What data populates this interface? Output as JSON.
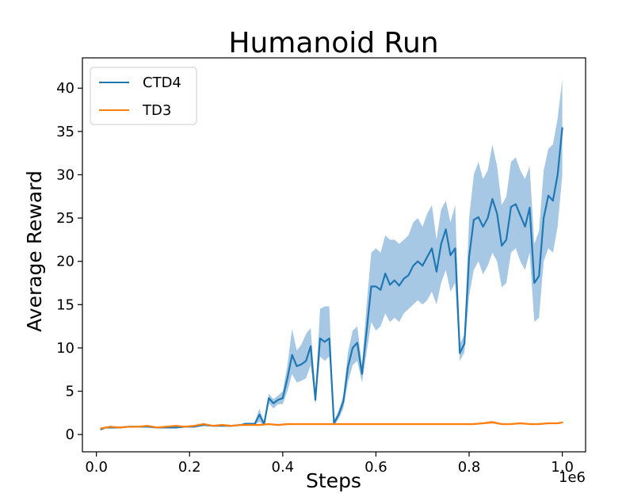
{
  "chart_data": {
    "type": "line",
    "title": "Humanoid Run",
    "xlabel": "Steps",
    "ylabel": "Average Reward",
    "x_offset_label": "1e6",
    "xlim": [
      -0.03,
      1.05
    ],
    "ylim": [
      -2,
      43.5
    ],
    "x_ticks": [
      0.0,
      0.2,
      0.4,
      0.6,
      0.8,
      1.0
    ],
    "x_tick_labels": [
      "0.0",
      "0.2",
      "0.4",
      "0.6",
      "0.8",
      "1.0"
    ],
    "y_ticks": [
      0,
      5,
      10,
      15,
      20,
      25,
      30,
      35,
      40
    ],
    "y_tick_labels": [
      "0",
      "5",
      "10",
      "15",
      "20",
      "25",
      "30",
      "35",
      "40"
    ],
    "grid": false,
    "legend_position": "top-left",
    "series": [
      {
        "name": "CTD4",
        "color": "#1f77b4",
        "band_color": "#a6c8e4",
        "points": [
          [
            0.01,
            0.6,
            0.6,
            0.6
          ],
          [
            0.02,
            0.8,
            0.7,
            0.9
          ],
          [
            0.03,
            0.8,
            0.7,
            0.9
          ],
          [
            0.05,
            0.8,
            0.7,
            0.9
          ],
          [
            0.07,
            0.9,
            0.8,
            1.0
          ],
          [
            0.09,
            0.9,
            0.8,
            1.0
          ],
          [
            0.11,
            0.9,
            0.8,
            1.0
          ],
          [
            0.13,
            0.8,
            0.7,
            0.9
          ],
          [
            0.15,
            0.8,
            0.7,
            0.9
          ],
          [
            0.17,
            0.8,
            0.7,
            0.9
          ],
          [
            0.19,
            0.9,
            0.8,
            1.0
          ],
          [
            0.21,
            0.9,
            0.8,
            1.0
          ],
          [
            0.23,
            1.1,
            1.0,
            1.2
          ],
          [
            0.25,
            1.0,
            0.9,
            1.1
          ],
          [
            0.27,
            1.0,
            0.9,
            1.1
          ],
          [
            0.29,
            1.0,
            0.9,
            1.1
          ],
          [
            0.31,
            1.1,
            1.0,
            1.2
          ],
          [
            0.32,
            1.2,
            1.1,
            1.4
          ],
          [
            0.34,
            1.2,
            1.1,
            1.4
          ],
          [
            0.35,
            2.3,
            1.5,
            3.0
          ],
          [
            0.36,
            1.2,
            1.0,
            1.4
          ],
          [
            0.37,
            4.2,
            3.6,
            4.7
          ],
          [
            0.38,
            3.6,
            3.0,
            4.1
          ],
          [
            0.39,
            4.0,
            3.5,
            4.5
          ],
          [
            0.4,
            4.2,
            3.5,
            5.0
          ],
          [
            0.41,
            6.5,
            5.0,
            8.0
          ],
          [
            0.42,
            9.2,
            7.0,
            12.2
          ],
          [
            0.43,
            7.9,
            6.0,
            9.7
          ],
          [
            0.44,
            8.1,
            6.2,
            10.4
          ],
          [
            0.45,
            8.5,
            6.5,
            11.6
          ],
          [
            0.46,
            10.2,
            8.0,
            12.3
          ],
          [
            0.47,
            4.0,
            3.5,
            4.5
          ],
          [
            0.48,
            11.1,
            9.0,
            14.5
          ],
          [
            0.49,
            10.7,
            8.5,
            14.8
          ],
          [
            0.5,
            11.1,
            9.0,
            14.8
          ],
          [
            0.51,
            1.3,
            1.0,
            1.6
          ],
          [
            0.52,
            2.3,
            1.8,
            2.8
          ],
          [
            0.53,
            3.8,
            3.0,
            4.5
          ],
          [
            0.54,
            7.8,
            6.0,
            9.5
          ],
          [
            0.55,
            10.0,
            8.0,
            12.0
          ],
          [
            0.56,
            10.6,
            8.5,
            12.5
          ],
          [
            0.57,
            7.0,
            6.0,
            8.0
          ],
          [
            0.58,
            12.0,
            9.5,
            15.0
          ],
          [
            0.59,
            17.1,
            13.0,
            21.0
          ],
          [
            0.6,
            17.1,
            12.0,
            21.5
          ],
          [
            0.61,
            16.7,
            12.5,
            21.0
          ],
          [
            0.62,
            18.6,
            14.0,
            23.0
          ],
          [
            0.63,
            17.3,
            13.0,
            22.5
          ],
          [
            0.64,
            17.8,
            13.5,
            22.5
          ],
          [
            0.65,
            17.2,
            13.0,
            22.0
          ],
          [
            0.66,
            18.0,
            14.0,
            22.5
          ],
          [
            0.67,
            18.4,
            14.5,
            23.0
          ],
          [
            0.68,
            19.5,
            15.0,
            24.5
          ],
          [
            0.69,
            20.0,
            15.5,
            25.0
          ],
          [
            0.7,
            19.5,
            15.0,
            24.0
          ],
          [
            0.71,
            20.5,
            15.5,
            25.5
          ],
          [
            0.72,
            21.5,
            16.5,
            26.5
          ],
          [
            0.73,
            18.8,
            15.0,
            22.5
          ],
          [
            0.74,
            22.0,
            17.5,
            26.0
          ],
          [
            0.75,
            23.7,
            19.0,
            27.0
          ],
          [
            0.76,
            20.7,
            16.5,
            24.5
          ],
          [
            0.77,
            21.5,
            17.5,
            26.5
          ],
          [
            0.78,
            9.4,
            8.5,
            10.5
          ],
          [
            0.79,
            10.5,
            9.5,
            11.5
          ],
          [
            0.8,
            20.5,
            16.0,
            25.0
          ],
          [
            0.81,
            24.8,
            19.0,
            30.0
          ],
          [
            0.82,
            25.1,
            20.0,
            31.5
          ],
          [
            0.83,
            24.0,
            18.5,
            29.5
          ],
          [
            0.84,
            25.0,
            19.5,
            30.5
          ],
          [
            0.85,
            27.2,
            21.0,
            33.5
          ],
          [
            0.86,
            25.5,
            20.0,
            31.0
          ],
          [
            0.87,
            21.8,
            17.0,
            26.5
          ],
          [
            0.88,
            22.5,
            17.5,
            27.5
          ],
          [
            0.89,
            26.3,
            21.0,
            31.5
          ],
          [
            0.9,
            26.6,
            21.5,
            32.0
          ],
          [
            0.91,
            25.3,
            20.0,
            30.5
          ],
          [
            0.92,
            24.0,
            19.0,
            29.5
          ],
          [
            0.93,
            26.2,
            21.0,
            31.0
          ],
          [
            0.94,
            17.5,
            13.0,
            22.0
          ],
          [
            0.95,
            18.3,
            13.5,
            23.5
          ],
          [
            0.96,
            25.0,
            20.0,
            30.5
          ],
          [
            0.97,
            27.6,
            21.5,
            33.0
          ],
          [
            0.98,
            27.0,
            21.0,
            33.5
          ],
          [
            0.99,
            30.0,
            24.0,
            36.5
          ],
          [
            1.0,
            35.4,
            30.0,
            41.0
          ]
        ]
      },
      {
        "name": "TD3",
        "color": "#ff7f0e",
        "band_color": "#ffbf86",
        "points": [
          [
            0.01,
            0.7,
            0.6,
            0.8
          ],
          [
            0.03,
            0.9,
            0.8,
            1.0
          ],
          [
            0.05,
            0.8,
            0.7,
            0.9
          ],
          [
            0.07,
            0.9,
            0.8,
            1.0
          ],
          [
            0.09,
            0.9,
            0.8,
            1.0
          ],
          [
            0.11,
            1.0,
            0.9,
            1.1
          ],
          [
            0.13,
            0.8,
            0.7,
            0.9
          ],
          [
            0.15,
            0.9,
            0.8,
            1.0
          ],
          [
            0.17,
            1.0,
            0.9,
            1.1
          ],
          [
            0.19,
            0.9,
            0.8,
            1.0
          ],
          [
            0.21,
            1.0,
            0.9,
            1.1
          ],
          [
            0.23,
            1.2,
            1.1,
            1.3
          ],
          [
            0.25,
            1.0,
            0.9,
            1.1
          ],
          [
            0.27,
            1.1,
            1.0,
            1.2
          ],
          [
            0.29,
            1.0,
            0.9,
            1.1
          ],
          [
            0.31,
            1.1,
            1.0,
            1.2
          ],
          [
            0.33,
            1.1,
            1.0,
            1.2
          ],
          [
            0.35,
            1.1,
            1.0,
            1.2
          ],
          [
            0.37,
            1.2,
            1.1,
            1.3
          ],
          [
            0.39,
            1.1,
            1.0,
            1.2
          ],
          [
            0.41,
            1.2,
            1.1,
            1.3
          ],
          [
            0.43,
            1.2,
            1.1,
            1.3
          ],
          [
            0.45,
            1.2,
            1.1,
            1.3
          ],
          [
            0.47,
            1.2,
            1.1,
            1.3
          ],
          [
            0.49,
            1.2,
            1.1,
            1.3
          ],
          [
            0.51,
            1.2,
            1.1,
            1.3
          ],
          [
            0.53,
            1.2,
            1.1,
            1.3
          ],
          [
            0.55,
            1.2,
            1.1,
            1.3
          ],
          [
            0.57,
            1.2,
            1.1,
            1.3
          ],
          [
            0.59,
            1.2,
            1.1,
            1.3
          ],
          [
            0.61,
            1.2,
            1.1,
            1.3
          ],
          [
            0.63,
            1.2,
            1.1,
            1.3
          ],
          [
            0.65,
            1.2,
            1.1,
            1.3
          ],
          [
            0.67,
            1.2,
            1.1,
            1.3
          ],
          [
            0.69,
            1.2,
            1.1,
            1.3
          ],
          [
            0.71,
            1.2,
            1.1,
            1.3
          ],
          [
            0.73,
            1.2,
            1.1,
            1.3
          ],
          [
            0.75,
            1.2,
            1.1,
            1.3
          ],
          [
            0.77,
            1.2,
            1.1,
            1.3
          ],
          [
            0.79,
            1.2,
            1.1,
            1.3
          ],
          [
            0.81,
            1.2,
            1.1,
            1.3
          ],
          [
            0.83,
            1.3,
            1.2,
            1.4
          ],
          [
            0.85,
            1.4,
            1.3,
            1.6
          ],
          [
            0.87,
            1.2,
            1.1,
            1.3
          ],
          [
            0.89,
            1.2,
            1.1,
            1.3
          ],
          [
            0.91,
            1.3,
            1.2,
            1.4
          ],
          [
            0.93,
            1.2,
            1.1,
            1.3
          ],
          [
            0.95,
            1.2,
            1.1,
            1.3
          ],
          [
            0.97,
            1.3,
            1.2,
            1.4
          ],
          [
            0.99,
            1.3,
            1.2,
            1.4
          ],
          [
            1.0,
            1.4,
            1.3,
            1.5
          ]
        ]
      }
    ]
  }
}
